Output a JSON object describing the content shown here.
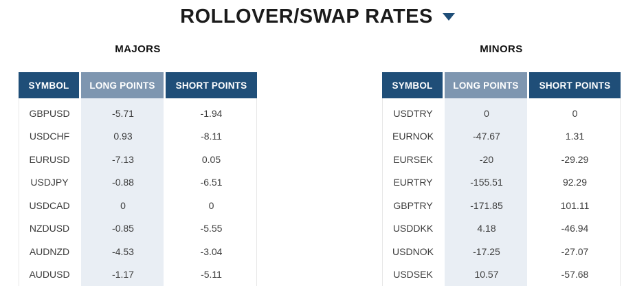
{
  "title": {
    "text": "ROLLOVER/SWAP RATES"
  },
  "colors": {
    "navy": "#1f4e78",
    "muted": "#7e96b0",
    "light": "#e9eef4",
    "border": "#e7e7e7",
    "title": "#1b1b1b",
    "text": "#3c3c3c",
    "htext": "#ffffff"
  },
  "tables": [
    {
      "label": "MAJORS",
      "headers": [
        "SYMBOL",
        "LONG POINTS",
        "SHORT POINTS"
      ],
      "rows": [
        [
          "GBPUSD",
          "-5.71",
          "-1.94"
        ],
        [
          "USDCHF",
          "0.93",
          "-8.11"
        ],
        [
          "EURUSD",
          "-7.13",
          "0.05"
        ],
        [
          "USDJPY",
          "-0.88",
          "-6.51"
        ],
        [
          "USDCAD",
          "0",
          "0"
        ],
        [
          "NZDUSD",
          "-0.85",
          "-5.55"
        ],
        [
          "AUDNZD",
          "-4.53",
          "-3.04"
        ],
        [
          "AUDUSD",
          "-1.17",
          "-5.11"
        ]
      ]
    },
    {
      "label": "MINORS",
      "headers": [
        "SYMBOL",
        "LONG POINTS",
        "SHORT POINTS"
      ],
      "rows": [
        [
          "USDTRY",
          "0",
          "0"
        ],
        [
          "EURNOK",
          "-47.67",
          "1.31"
        ],
        [
          "EURSEK",
          "-20",
          "-29.29"
        ],
        [
          "EURTRY",
          "-155.51",
          "92.29"
        ],
        [
          "GBPTRY",
          "-171.85",
          "101.11"
        ],
        [
          "USDDKK",
          "4.18",
          "-46.94"
        ],
        [
          "USDNOK",
          "-17.25",
          "-27.07"
        ],
        [
          "USDSEK",
          "10.57",
          "-57.68"
        ]
      ]
    }
  ]
}
